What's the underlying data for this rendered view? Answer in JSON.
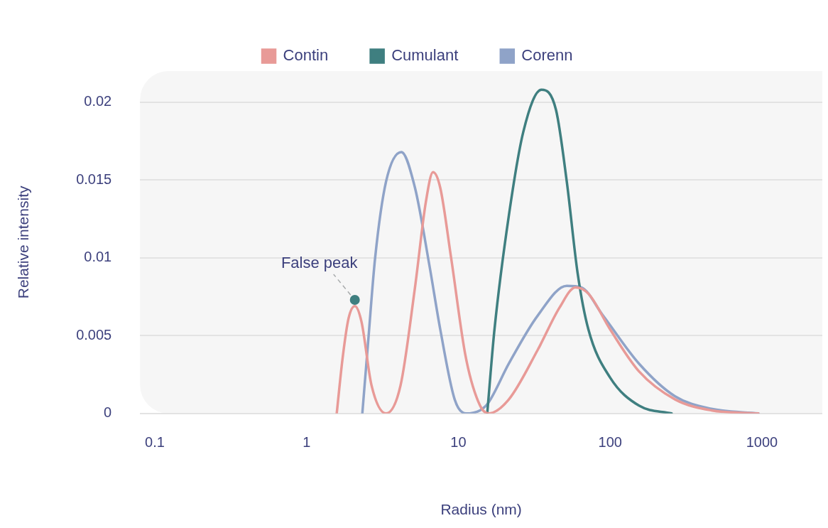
{
  "chart_data": {
    "type": "line",
    "xlabel": "Radius (nm)",
    "ylabel": "Relative intensity",
    "log": "x",
    "xlim": [
      0.08,
      2500
    ],
    "xticks": [
      0.1,
      1,
      10,
      100,
      1000
    ],
    "ylim": [
      0,
      0.022
    ],
    "yticks": [
      0,
      0.005,
      0.01,
      0.015,
      0.02
    ],
    "grid": "y",
    "legend": "top",
    "marker": "none",
    "line_style": "solid",
    "annotations": [
      {
        "text": "False peak",
        "x": 2.08,
        "y": 0.0073
      }
    ],
    "series": [
      {
        "name": "Contin",
        "color": "#e89a97",
        "x": [
          1.58,
          1.73,
          1.89,
          2.08,
          2.3,
          2.68,
          3.34,
          4.16,
          5.18,
          6.11,
          6.81,
          7.6,
          8.96,
          11.2,
          13.9,
          15.8,
          21.5,
          33.4,
          46.4,
          59.1,
          71.9,
          100,
          155,
          268,
          464,
          947
        ],
        "values": [
          0,
          0.0036,
          0.0061,
          0.0069,
          0.0059,
          0.0018,
          0,
          0.0018,
          0.0081,
          0.0136,
          0.0155,
          0.0145,
          0.01,
          0.0036,
          0.0005,
          0,
          0.0009,
          0.0041,
          0.0068,
          0.0081,
          0.0077,
          0.0054,
          0.0027,
          0.0009,
          0.0002,
          0
        ]
      },
      {
        "name": "Cumulant",
        "color": "#3f7f80",
        "x": [
          15.5,
          17.3,
          21.5,
          26.8,
          35.3,
          44,
          51.8,
          61.1,
          71.9,
          100,
          155,
          254
        ],
        "values": [
          0,
          0.0054,
          0.0127,
          0.0181,
          0.0208,
          0.0195,
          0.0149,
          0.009,
          0.0054,
          0.0023,
          0.0005,
          0
        ]
      },
      {
        "name": "Corenn",
        "color": "#8fa3c8",
        "x": [
          2.33,
          2.54,
          2.83,
          3.34,
          4.21,
          5.18,
          6.45,
          7.6,
          9.46,
          11.2,
          13.9,
          15.8,
          21.5,
          33.4,
          51.8,
          64.5,
          89.6,
          155,
          268,
          464,
          947
        ],
        "values": [
          0,
          0.0045,
          0.01,
          0.0149,
          0.0168,
          0.0145,
          0.0095,
          0.0054,
          0.0009,
          0,
          0.0002,
          0.0007,
          0.0032,
          0.0063,
          0.0082,
          0.0081,
          0.0063,
          0.0032,
          0.0011,
          0.0003,
          0
        ]
      }
    ]
  }
}
